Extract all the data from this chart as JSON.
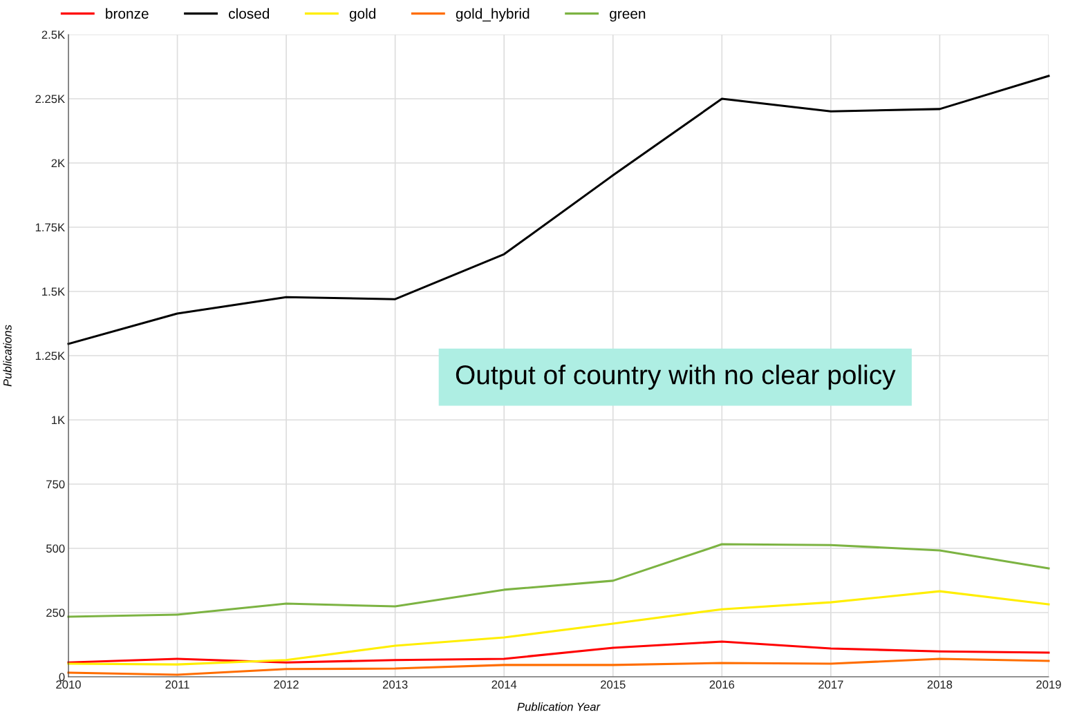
{
  "chart_data": {
    "type": "line",
    "xlabel": "Publication Year",
    "ylabel": "Publications",
    "x": [
      2010,
      2011,
      2012,
      2013,
      2014,
      2015,
      2016,
      2017,
      2018,
      2019
    ],
    "series": [
      {
        "name": "bronze",
        "color": "#ff0000",
        "values": [
          56,
          70,
          56,
          65,
          70,
          113,
          137,
          110,
          99,
          94
        ]
      },
      {
        "name": "closed",
        "color": "#000000",
        "values": [
          1296,
          1414,
          1478,
          1470,
          1645,
          1952,
          2250,
          2201,
          2210,
          2339
        ]
      },
      {
        "name": "gold",
        "color": "#ffee00",
        "values": [
          51,
          48,
          65,
          121,
          153,
          207,
          263,
          290,
          333,
          282
        ]
      },
      {
        "name": "gold_hybrid",
        "color": "#ff6d00",
        "values": [
          16,
          8,
          30,
          32,
          46,
          46,
          54,
          51,
          70,
          62
        ]
      },
      {
        "name": "green",
        "color": "#7cb342",
        "values": [
          234,
          242,
          285,
          274,
          339,
          374,
          516,
          513,
          492,
          422
        ]
      }
    ],
    "xlim": [
      2010,
      2019
    ],
    "xticks": [
      2010,
      2011,
      2012,
      2013,
      2014,
      2015,
      2016,
      2017,
      2018,
      2019
    ],
    "ylim": [
      0,
      2500
    ],
    "yticks": [
      0,
      250,
      500,
      750,
      {
        "value": 1000,
        "label": "1K"
      },
      {
        "value": 1250,
        "label": "1.25K"
      },
      {
        "value": 1500,
        "label": "1.5K"
      },
      {
        "value": 1750,
        "label": "1.75K"
      },
      {
        "value": 2000,
        "label": "2K"
      },
      {
        "value": 2250,
        "label": "2.25K"
      },
      {
        "value": 2500,
        "label": "2.5K"
      }
    ],
    "annotations": [
      "Output of country with no clear policy"
    ],
    "grid": true,
    "legend": "top left",
    "marker": "none",
    "line_style": "solid"
  }
}
